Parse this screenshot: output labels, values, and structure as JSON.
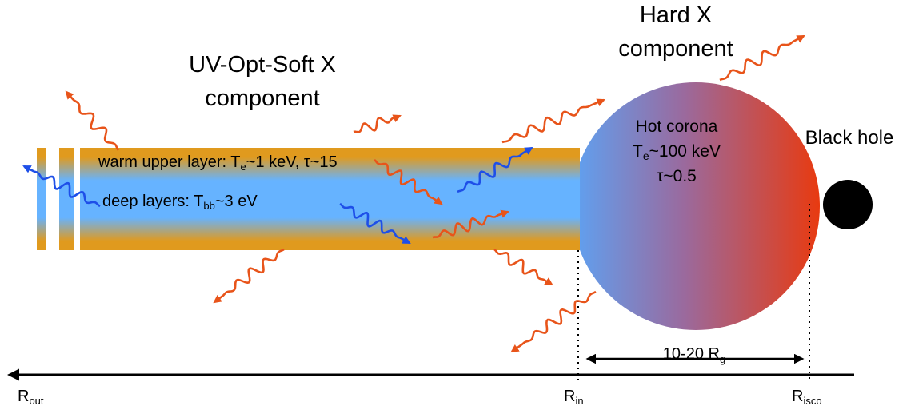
{
  "headings": {
    "uv_line1": "UV-Opt-Soft X",
    "uv_line2": "component",
    "hard_line1": "Hard X",
    "hard_line2": "component",
    "black_hole": "Black hole"
  },
  "disk": {
    "warm_prefix": "warm upper layer: T",
    "warm_sub": "e",
    "warm_suffix": "~1 keV, τ~15",
    "deep_prefix": "deep layers: T",
    "deep_sub": "bb",
    "deep_suffix": "~3 eV"
  },
  "corona": {
    "line1": "Hot corona",
    "line2_prefix": "T",
    "line2_sub": "e",
    "line2_suffix": "~100 keV",
    "line3": "τ~0.5"
  },
  "scale": {
    "range_prefix": "10-20 R",
    "range_sub": "g"
  },
  "axis": {
    "rout_main": "R",
    "rout_sub": "out",
    "rin_main": "R",
    "rin_sub": "in",
    "risco_main": "R",
    "risco_sub": "isco"
  },
  "colors": {
    "disk_warm": "#e09a1e",
    "disk_deep": "#66b3ff",
    "photon_soft": "#1e4fe8",
    "photon_hard": "#e8541a",
    "corona_cool": "#5ea2f2",
    "corona_hot": "#e83a10",
    "black_hole": "#000000"
  }
}
